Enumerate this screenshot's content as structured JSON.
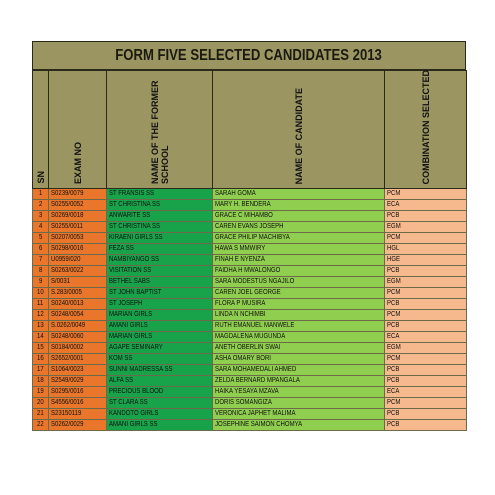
{
  "title": "FORM FIVE SELECTED CANDIDATES 2013",
  "columns": [
    "SN",
    "EXAM NO",
    "NAME OF THE FORMER SCHOOL",
    "NAME OF CANDIDATE",
    "COMBINATION SELECTED"
  ],
  "rows": [
    [
      "1",
      "S0239/0079",
      "ST FRANSIS SS",
      "SARAH GOMA",
      "PCM"
    ],
    [
      "2",
      "S0255/0052",
      "ST CHRISTINA SS",
      "MARY H. BENDERA",
      "ECA"
    ],
    [
      "3",
      "S0269/0018",
      "ANWARITE SS",
      "GRACE C MIHAMBO",
      "PCB"
    ],
    [
      "4",
      "S0255/0011",
      "ST CHRISTINA SS",
      "CAREN EVANS JOSEPH",
      "EGM"
    ],
    [
      "5",
      "S0207/0053",
      "KIRAENI GIRLS SS",
      "GRACE PHILIP MACHIBYA",
      "PCM"
    ],
    [
      "6",
      "S0298/0016",
      "FEZA SS",
      "HAWA S MMWIRY",
      "HGL"
    ],
    [
      "7",
      "U0959/020",
      "NAMBIYANGO SS",
      "FINAH E NYENZA",
      "HGE"
    ],
    [
      "8",
      "S0263/0022",
      "VISITATION SS",
      "FAIDHA H MWALONGO",
      "PCB"
    ],
    [
      "9",
      "S/0031",
      "BETHEL SABS",
      "SARA MODESTUS NGAJILO",
      "EGM"
    ],
    [
      "10",
      "S.283/0005",
      "ST JOHN BAPTIST",
      "CAREN JOEL GEORGE",
      "PCM"
    ],
    [
      "11",
      "S0240/0013",
      "ST JOSEPH",
      "FLORA P MUSIRA",
      "PCB"
    ],
    [
      "12",
      "S0248/0054",
      "MARIAN GIRLS",
      "LINDA N NCHIMBI",
      "PCM"
    ],
    [
      "13",
      "S.0262/0049",
      "AMANI GIRLS",
      "RUTH EMANUEL MANWELE",
      "PCB"
    ],
    [
      "14",
      "S0248/0060",
      "MARIAN GIRLS",
      "MAGDALENA MUGUNDA",
      "ECA"
    ],
    [
      "15",
      "S0184/0002",
      "AGAPE SEMINARY",
      "ANETH OBERLIN SWAI",
      "EGM"
    ],
    [
      "16",
      "S2652/0001",
      "KOM SS",
      "ASHA OMARY BORI",
      "PCM"
    ],
    [
      "17",
      "S1064/0023",
      "SUNNI MADRESSA SS",
      "SARA MOHAMEDALI AHMED",
      "PCB"
    ],
    [
      "18",
      "S2549/0029",
      "ALFA SS",
      "ZELDA BERNARD MPANGALA",
      "PCB"
    ],
    [
      "19",
      "S0295/0016",
      "PRECIOUS BLOOD",
      "HAIKA YESAYA MZAVA",
      "ECA"
    ],
    [
      "20",
      "S4556/0016",
      "ST CLARA SS",
      "DORIS SOMANGIZA",
      "PCM"
    ],
    [
      "21",
      "S23150119",
      "KANDOTO GIRLS",
      "VERONICA JAPHET MALIMA",
      "PCB"
    ],
    [
      "22",
      "S0262/0029",
      "AMANI GIRLS SS",
      "JOSEPHINE SAIMON CHOMYA",
      "PCB"
    ]
  ],
  "colors": {
    "header_bg": "#9b9562",
    "sn_bg": "#e9762b",
    "exam_bg": "#e9762b",
    "school_bg": "#18a34a",
    "candidate_bg": "#8fce4f",
    "combination_bg": "#f6b98e"
  }
}
